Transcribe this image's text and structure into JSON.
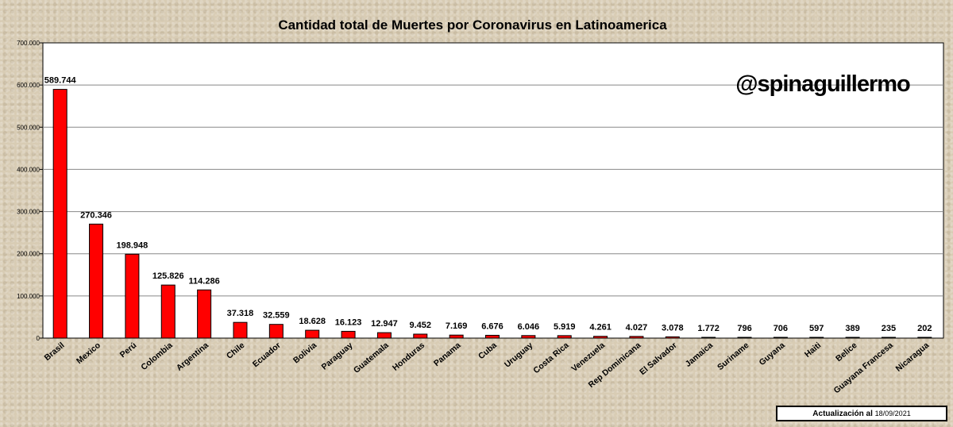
{
  "chart_data": {
    "type": "bar",
    "title": "Cantidad total de Muertes por Coronavirus en Latinoamerica",
    "watermark": "@spinaguillermo",
    "update_label": "Actualización  al",
    "update_date": "18/09/2021",
    "bar_color": "#ff0000",
    "ylim": [
      0,
      700000
    ],
    "yticks": [
      "0",
      "100.000",
      "200.000",
      "300.000",
      "400.000",
      "500.000",
      "600.000",
      "700.000"
    ],
    "categories": [
      "Brasil",
      "Mexico",
      "Perú",
      "Colombia",
      "Argentina",
      "Chile",
      "Ecuador",
      "Bolivia",
      "Paraguay",
      "Guatemala",
      "Honduras",
      "Panama",
      "Cuba",
      "Uruguay",
      "Costa Rica",
      "Venezuela",
      "Rep Dominicana",
      "El Salvador",
      "Jamaica",
      "Suriname",
      "Guyana",
      "Haiti",
      "Belice",
      "Guayana Francesa",
      "Nicaragua"
    ],
    "values": [
      589744,
      270346,
      198948,
      125826,
      114286,
      37318,
      32559,
      18628,
      16123,
      12947,
      9452,
      7169,
      6676,
      6046,
      5919,
      4261,
      4027,
      3078,
      1772,
      796,
      706,
      597,
      389,
      235,
      202
    ],
    "value_labels": [
      "589.744",
      "270.346",
      "198.948",
      "125.826",
      "114.286",
      "37.318",
      "32.559",
      "18.628",
      "16.123",
      "12.947",
      "9.452",
      "7.169",
      "6.676",
      "6.046",
      "5.919",
      "4.261",
      "4.027",
      "3.078",
      "1.772",
      "796",
      "706",
      "597",
      "389",
      "235",
      "202"
    ],
    "grid": true,
    "xlabel": "",
    "ylabel": ""
  }
}
